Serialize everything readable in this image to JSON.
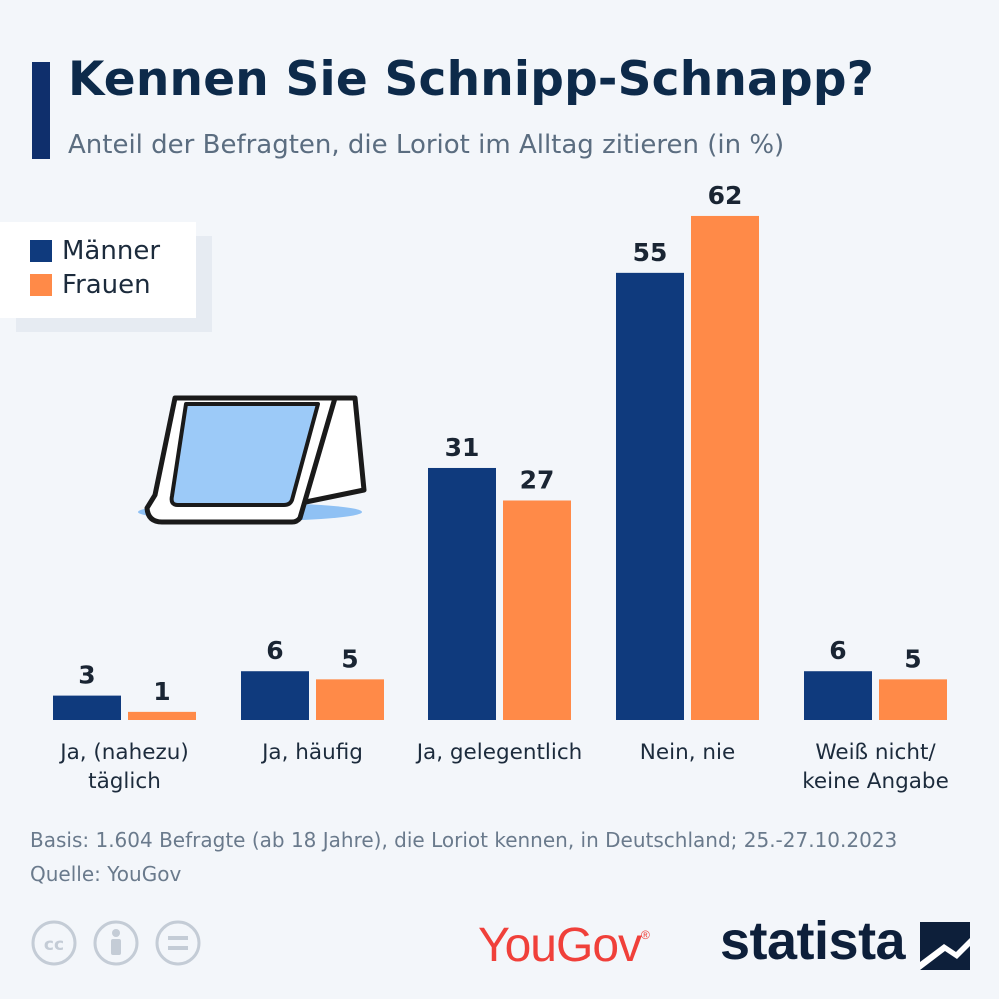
{
  "header": {
    "title": "Kennen Sie Schnipp-Schnapp?",
    "subtitle": "Anteil der Befragten, die Loriot im Alltag zitieren (in %)"
  },
  "colors": {
    "maenner": "#0f3a7d",
    "frauen": "#ff8a48",
    "accent": "#0f2f6c"
  },
  "chart_data": {
    "type": "bar",
    "categories": [
      "Ja, (nahezu)\ntäglich",
      "Ja, häufig",
      "Ja, gelegentlich",
      "Nein, nie",
      "Weiß nicht/\nkeine Angabe"
    ],
    "series": [
      {
        "name": "Männer",
        "values": [
          3,
          6,
          31,
          55,
          6
        ]
      },
      {
        "name": "Frauen",
        "values": [
          1,
          5,
          27,
          62,
          5
        ]
      }
    ],
    "legend": "top-left",
    "grid": false,
    "ylim": [
      0,
      62
    ]
  },
  "footer": {
    "basis": "Basis: 1.604 Befragte (ab 18 Jahre), die Loriot kennen, in Deutschland; 25.-27.10.2023",
    "source": "Quelle: YouGov",
    "yougov_logo": "YouGov",
    "statista_logo": "statista",
    "icons": [
      "cc-icon",
      "attribution-icon",
      "no-derivatives-icon"
    ]
  }
}
